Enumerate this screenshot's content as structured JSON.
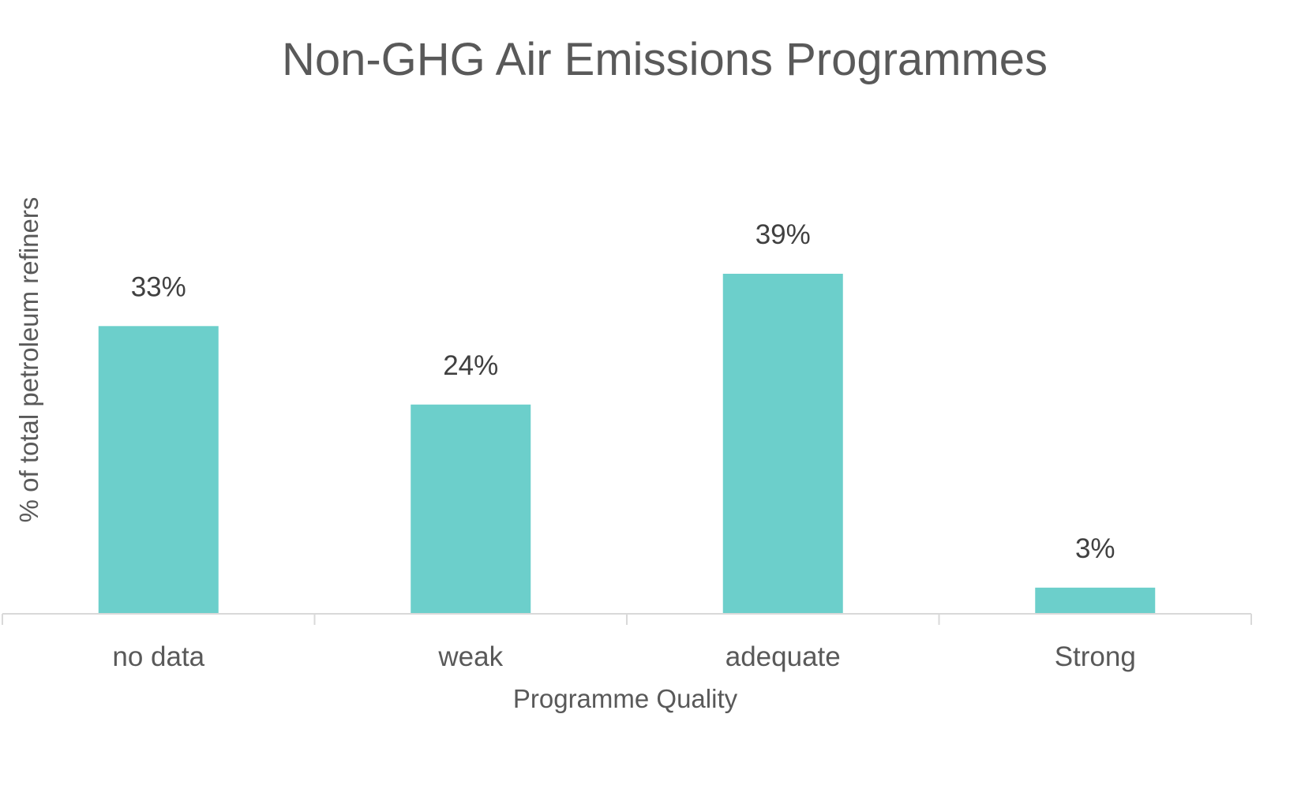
{
  "chart_data": {
    "type": "bar",
    "title": "Non-GHG Air Emissions Programmes",
    "xlabel": "Programme Quality",
    "ylabel": "% of total petroleum refiners",
    "categories": [
      "no data",
      "weak",
      "adequate",
      "Strong"
    ],
    "values": [
      33,
      24,
      39,
      3
    ],
    "data_labels": [
      "33%",
      "24%",
      "39%",
      "3%"
    ],
    "ylim": [
      0,
      50
    ],
    "grid": false,
    "legend": "none",
    "bar_color": "#6ccfcb",
    "axis_color": "#d9d9d9",
    "text_color": "#595959",
    "label_color": "#404040"
  }
}
